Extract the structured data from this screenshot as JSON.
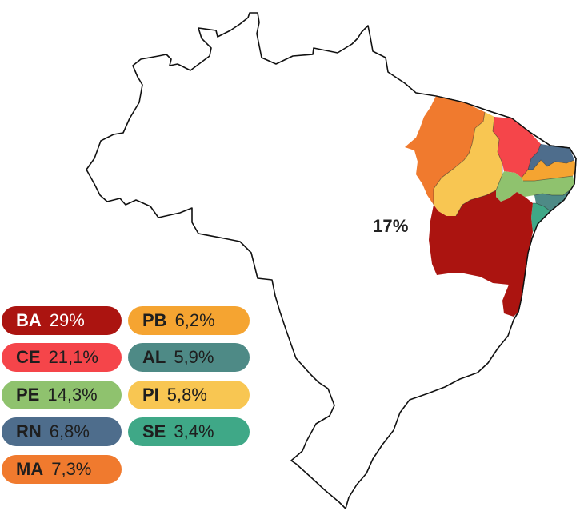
{
  "map": {
    "total_label": "17%",
    "colors": {
      "country_fill": "#ffffff",
      "country_border": "#111111",
      "BA": "#ab1410",
      "CE": "#f5454a",
      "PE": "#8fc26e",
      "RN": "#4e6d8c",
      "MA": "#f07a2e",
      "PB": "#f5a431",
      "AL": "#4e8a86",
      "PI": "#f8c652",
      "SE": "#3fa887"
    }
  },
  "legend": {
    "items": [
      {
        "code": "BA",
        "value": "29%",
        "color": "#ab1410",
        "text_color": "#ffffff"
      },
      {
        "code": "CE",
        "value": "21,1%",
        "color": "#f5454a",
        "text_color": "#1e1e1e"
      },
      {
        "code": "PE",
        "value": "14,3%",
        "color": "#8fc26e",
        "text_color": "#1e1e1e"
      },
      {
        "code": "RN",
        "value": "6,8%",
        "color": "#4e6d8c",
        "text_color": "#1e1e1e"
      },
      {
        "code": "MA",
        "value": "7,3%",
        "color": "#f07a2e",
        "text_color": "#1e1e1e"
      },
      {
        "code": "PB",
        "value": "6,2%",
        "color": "#f5a431",
        "text_color": "#1e1e1e"
      },
      {
        "code": "AL",
        "value": "5,9%",
        "color": "#4e8a86",
        "text_color": "#1e1e1e"
      },
      {
        "code": "PI",
        "value": "5,8%",
        "color": "#f8c652",
        "text_color": "#1e1e1e"
      },
      {
        "code": "SE",
        "value": "3,4%",
        "color": "#3fa887",
        "text_color": "#1e1e1e"
      }
    ]
  }
}
